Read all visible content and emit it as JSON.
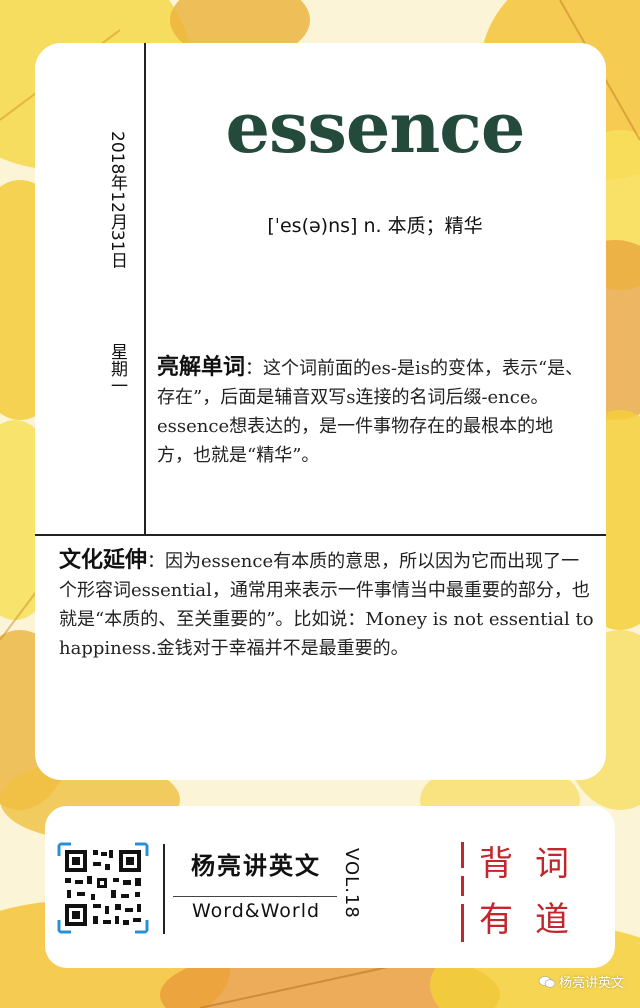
{
  "card": {
    "date": "2018年12月31日",
    "weekday": "星期一",
    "word": "essence",
    "phonetic": "[ˈes(ə)ns] n. 本质；精华",
    "explain_label": "亮解单词",
    "explain_text": "：这个词前面的es-是is的变体，表示“是、存在”，后面是辅音双写s连接的名词后缀-ence。essence想表达的，是一件事物存在的最根本的地方，也就是“精华”。",
    "culture_label": "文化延伸",
    "culture_text": "：因为essence有本质的意思，所以因为它而出现了一个形容词essential，通常用来表示一件事情当中最重要的部分，也就是“本质的、至关重要的”。比如说：Money is not essential to happiness.金钱对于幸福并不是最重要的。"
  },
  "footer": {
    "brand_cn": "杨亮讲英文",
    "brand_en": "Word&World",
    "vol": "VOL.18",
    "slogan": [
      "背",
      "词",
      "有",
      "道"
    ]
  },
  "watermark": "杨亮讲英文",
  "colors": {
    "word": "#244a3c",
    "accent_red": "#c1272d",
    "leaf_yellow": "#f3cf3a",
    "leaf_orange": "#e89a3a",
    "qr_blue": "#2a8fd6"
  },
  "icons": [
    "qr-code-icon",
    "wechat-icon"
  ]
}
